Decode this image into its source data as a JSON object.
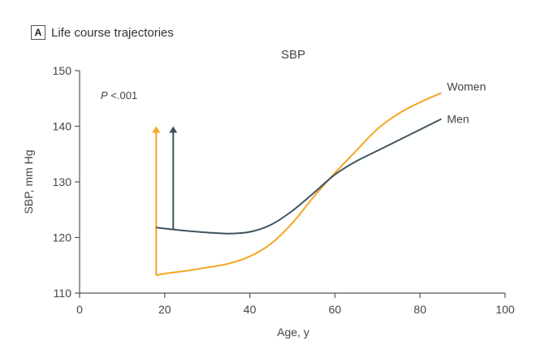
{
  "panel": {
    "badge": "A",
    "title": "Life course trajectories"
  },
  "chart_data": {
    "type": "line",
    "title": "SBP",
    "xlabel": "Age, y",
    "ylabel": "SBP, mm Hg",
    "xlim": [
      0,
      100
    ],
    "ylim": [
      110,
      150
    ],
    "xticks": [
      0,
      20,
      40,
      60,
      80,
      100
    ],
    "yticks": [
      110,
      120,
      130,
      140,
      150
    ],
    "grid": false,
    "annotation": {
      "text": "P <.001",
      "italic_part": "P",
      "rest": " <.001"
    },
    "colors": {
      "Women": "#f5a623",
      "Men": "#3e5460",
      "axis": "#555555"
    },
    "series": [
      {
        "name": "Women",
        "x": [
          18,
          20,
          25,
          30,
          35,
          40,
          45,
          50,
          55,
          60,
          65,
          70,
          75,
          80,
          85
        ],
        "y": [
          113.2,
          113.5,
          114.0,
          114.6,
          115.3,
          116.6,
          118.9,
          122.6,
          127.3,
          131.6,
          135.6,
          139.5,
          142.3,
          144.3,
          146.0
        ],
        "start_arrow": {
          "x": 18,
          "y_top": 140,
          "y_base": 113.2
        },
        "label": "Women"
      },
      {
        "name": "Men",
        "x": [
          18,
          20,
          25,
          30,
          35,
          40,
          45,
          50,
          55,
          60,
          65,
          70,
          75,
          80,
          85
        ],
        "y": [
          121.8,
          121.6,
          121.2,
          120.9,
          120.7,
          121.0,
          122.3,
          124.8,
          128.0,
          131.3,
          133.7,
          135.6,
          137.5,
          139.4,
          141.3
        ],
        "start_arrow": {
          "x": 22,
          "y_top": 140,
          "y_base": 121.5
        },
        "label": "Men"
      }
    ]
  }
}
